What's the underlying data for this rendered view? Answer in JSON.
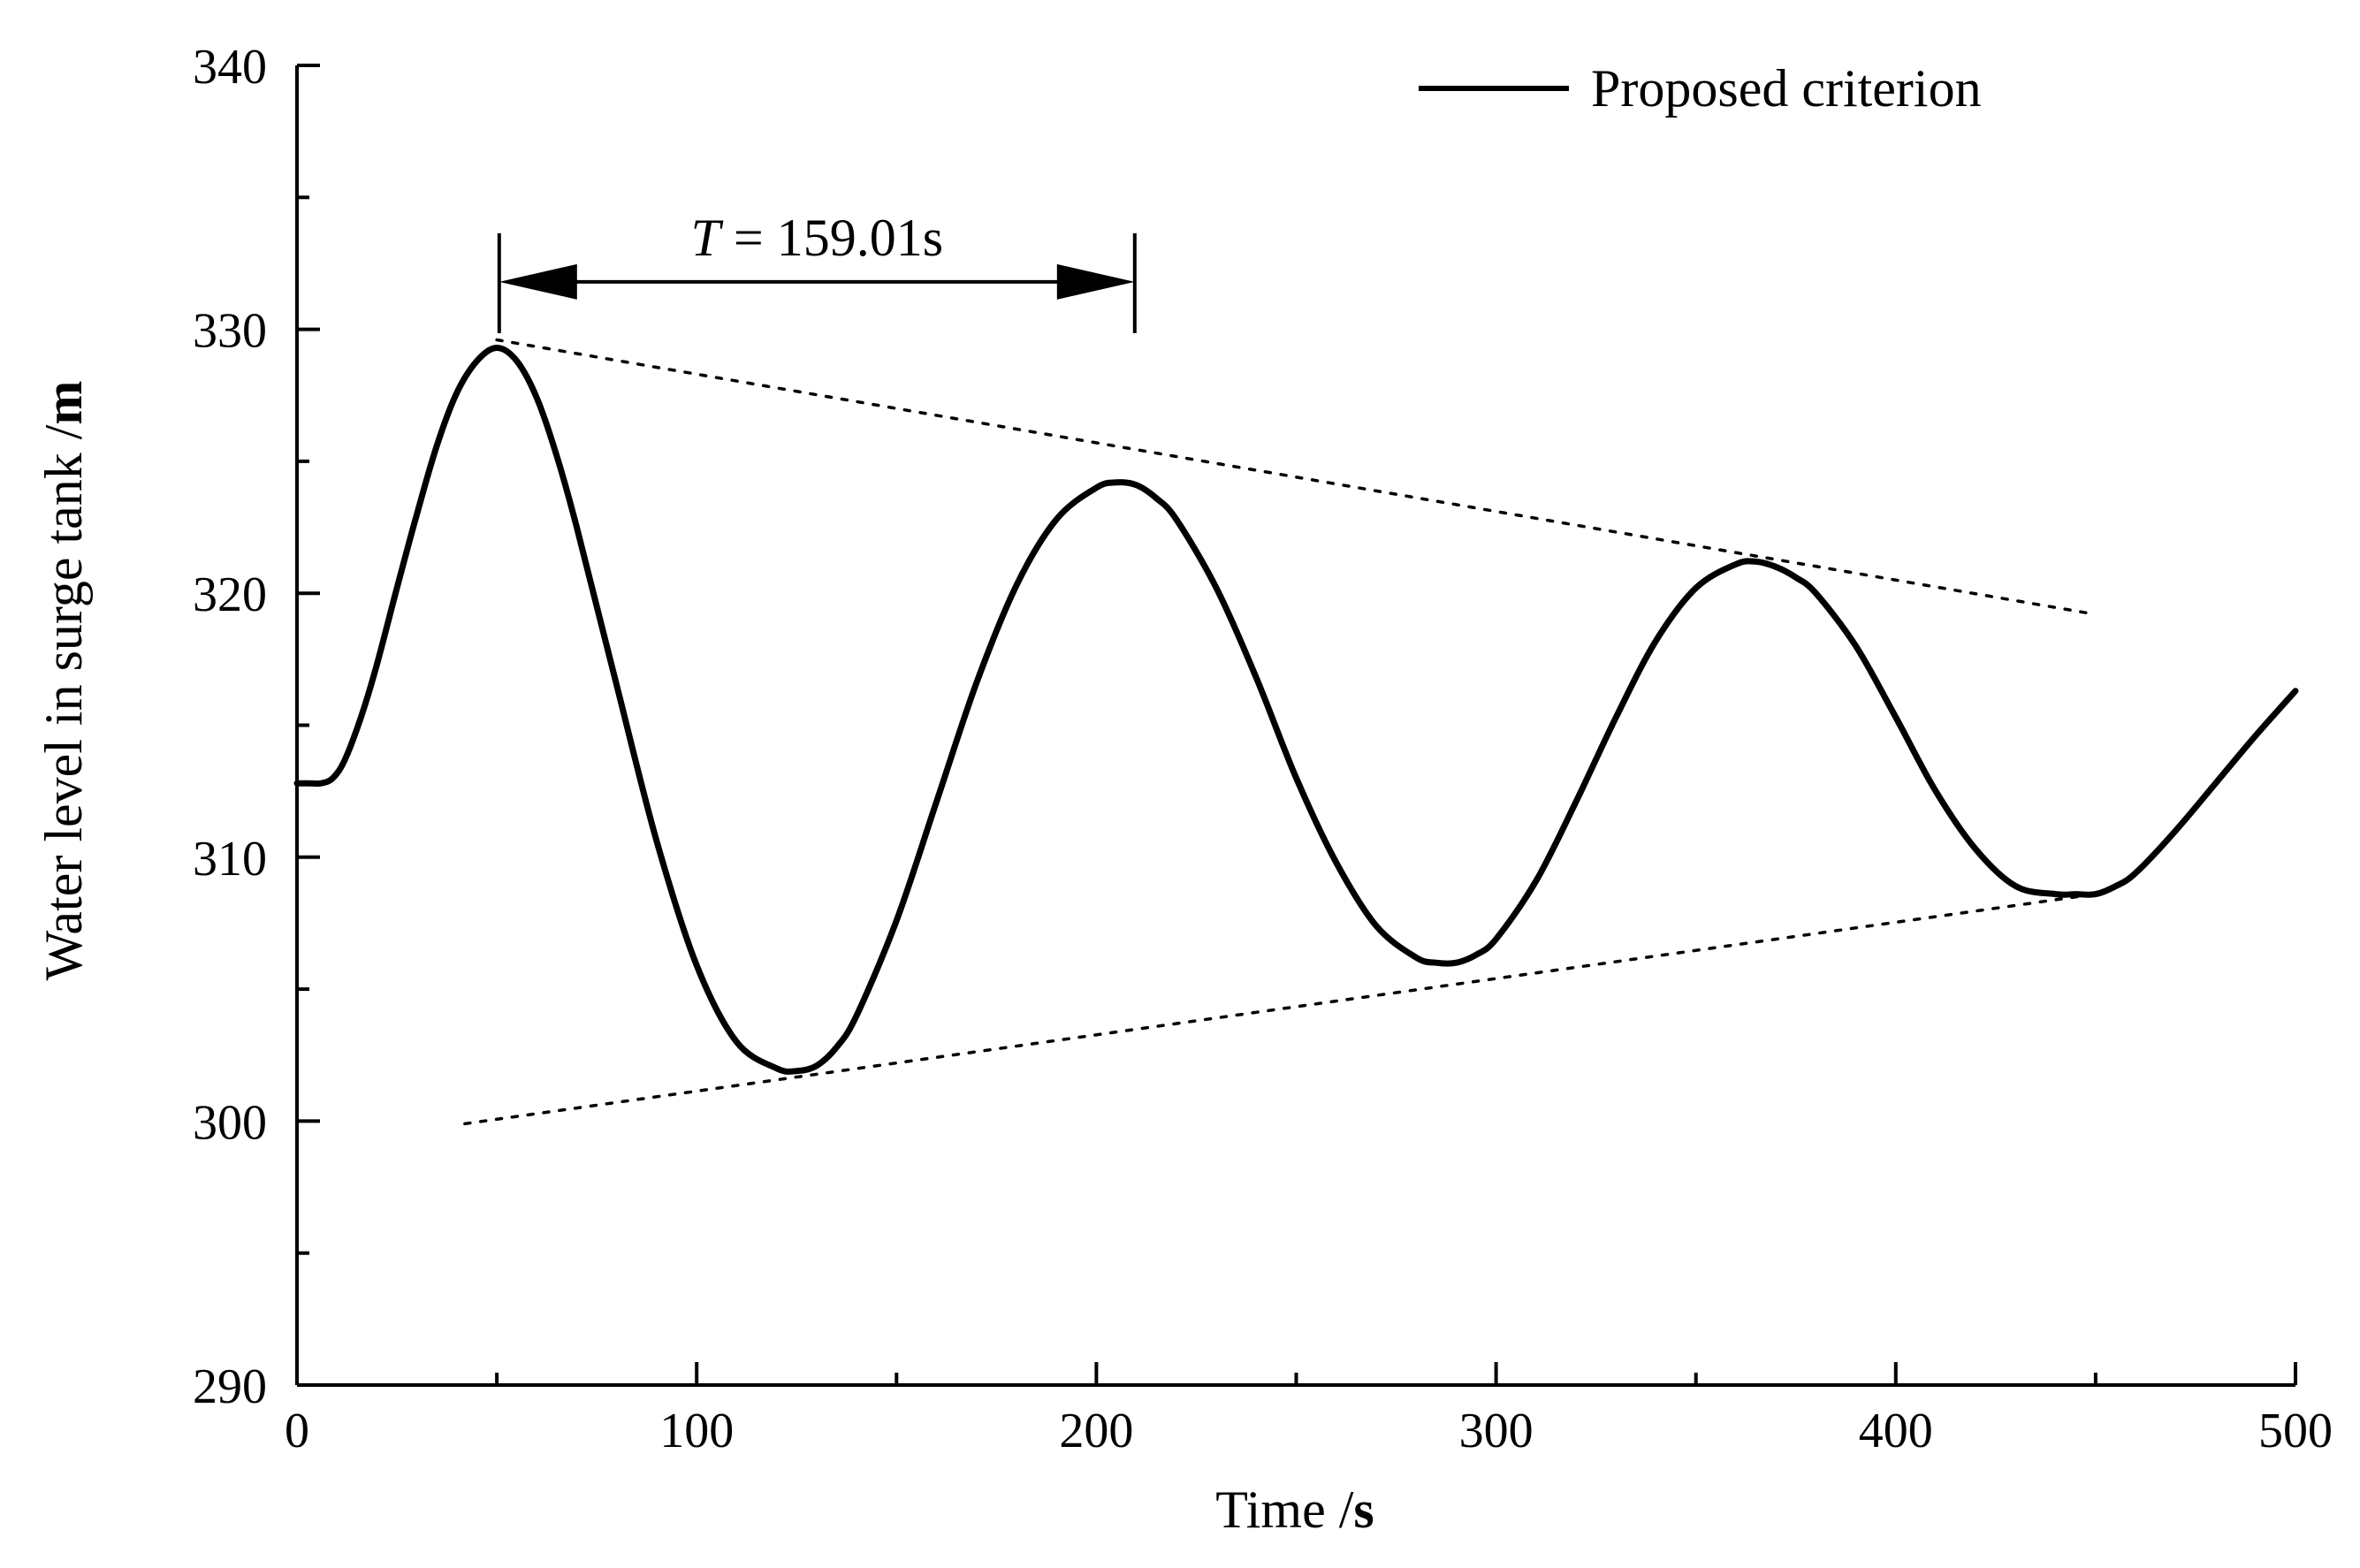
{
  "chart_data": {
    "type": "line",
    "title": "",
    "xlabel": "Time",
    "xlabel_unit": "s",
    "ylabel": "Water level in surge tank",
    "ylabel_unit": "m",
    "xlim": [
      0,
      500
    ],
    "ylim": [
      290,
      340
    ],
    "x_ticks": [
      0,
      100,
      200,
      300,
      400,
      500
    ],
    "y_ticks": [
      290,
      300,
      310,
      320,
      330,
      340
    ],
    "x_minor_step": 50,
    "y_minor_step": 5,
    "grid": false,
    "legend_position": "top-right",
    "series": [
      {
        "name": "Proposed criterion",
        "style": "solid",
        "color": "#000000",
        "x": [
          0,
          3,
          6,
          9,
          12,
          16,
          20,
          25,
          30,
          35,
          40,
          45,
          50,
          55,
          60,
          65,
          70,
          80,
          90,
          100,
          110,
          120,
          125,
          130,
          135,
          140,
          150,
          160,
          170,
          180,
          190,
          200,
          205,
          210,
          215,
          220,
          230,
          240,
          250,
          260,
          270,
          280,
          285,
          290,
          295,
          300,
          310,
          320,
          330,
          340,
          350,
          360,
          365,
          370,
          375,
          380,
          390,
          400,
          410,
          420,
          430,
          440,
          445,
          450,
          455,
          460,
          470,
          480,
          490,
          500
        ],
        "values": [
          312.8,
          312.8,
          312.8,
          313.0,
          313.7,
          315.3,
          317.3,
          320.2,
          323.0,
          325.6,
          327.6,
          328.8,
          329.3,
          328.8,
          327.4,
          325.2,
          322.5,
          316.5,
          310.6,
          305.9,
          303.0,
          302.0,
          301.9,
          302.1,
          302.8,
          304.0,
          307.6,
          312.1,
          316.6,
          320.3,
          322.8,
          324.0,
          324.2,
          324.1,
          323.6,
          322.8,
          320.2,
          316.8,
          313.0,
          309.8,
          307.4,
          306.2,
          306.0,
          306.0,
          306.3,
          306.9,
          309.1,
          312.1,
          315.3,
          318.2,
          320.2,
          321.1,
          321.2,
          321.0,
          320.6,
          320.0,
          318.0,
          315.3,
          312.5,
          310.3,
          308.9,
          308.6,
          308.6,
          308.6,
          308.9,
          309.4,
          311.0,
          312.8,
          314.6,
          316.3
        ]
      },
      {
        "name": "Upper envelope",
        "style": "dotted",
        "color": "#000000",
        "x": [
          50,
          450
        ],
        "values": [
          329.6,
          319.2
        ]
      },
      {
        "name": "Lower envelope",
        "style": "dotted",
        "color": "#000000",
        "x": [
          42,
          450
        ],
        "values": [
          299.9,
          308.6
        ]
      }
    ],
    "annotations": [
      {
        "type": "period-arrow",
        "italic_symbol": "T",
        "text": " = 159.01s",
        "x_start": 50.6,
        "x_end": 209.6,
        "y": 331.8
      }
    ]
  }
}
